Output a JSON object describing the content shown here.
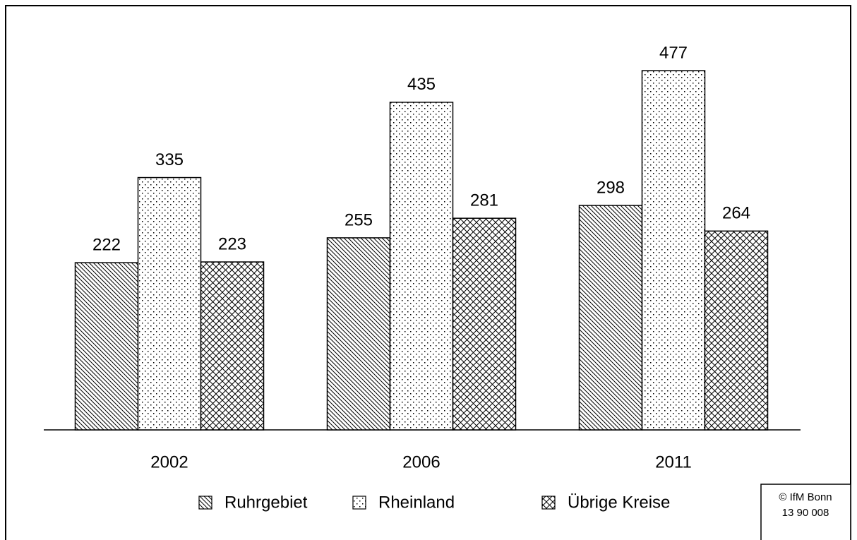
{
  "chart_data": {
    "type": "bar",
    "categories": [
      "2002",
      "2006",
      "2011"
    ],
    "series": [
      {
        "name": "Ruhrgebiet",
        "color": "#000000",
        "values": [
          222,
          255,
          298
        ]
      },
      {
        "name": "Rheinland",
        "color": "#000000",
        "values": [
          335,
          435,
          477
        ]
      },
      {
        "name": "Übrige Kreise",
        "color": "#000000",
        "values": [
          223,
          281,
          264
        ]
      }
    ],
    "note": [
      "© IfM Bonn",
      "13 90 008"
    ]
  }
}
